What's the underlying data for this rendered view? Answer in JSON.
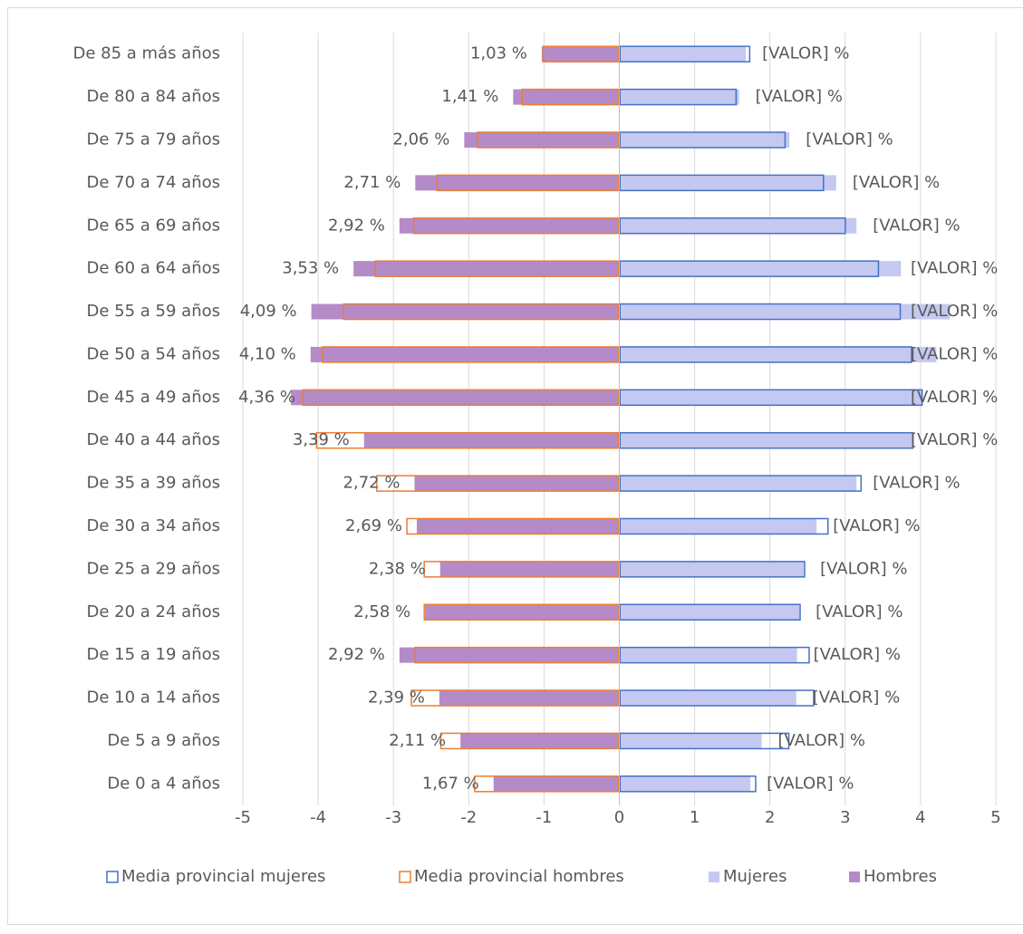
{
  "chart_data": {
    "type": "bar",
    "orientation": "horizontal",
    "categories": [
      "De 85 a más años",
      "De 80 a 84 años",
      "De 75 a 79 años",
      "De 70 a 74 años",
      "De 65 a 69 años",
      "De 60 a 64 años",
      "De 55 a 59 años",
      "De 50 a 54 años",
      "De 45 a 49 años",
      "De 40 a 44 años",
      "De 35 a 39 años",
      "De 30 a 34 años",
      "De 25 a 29 años",
      "De 20 a 24 años",
      "De 15 a 19 años",
      "De 10 a 14 años",
      "De 5 a 9 años",
      "De 0 a 4 años"
    ],
    "series": [
      {
        "name": "Media provincial mujeres",
        "color": "#4472c4",
        "filled": false,
        "values": [
          1.74,
          1.56,
          2.21,
          2.72,
          3.01,
          3.45,
          3.74,
          3.89,
          4.03,
          3.91,
          3.22,
          2.78,
          2.47,
          2.41,
          2.53,
          2.59,
          2.26,
          1.82
        ]
      },
      {
        "name": "Media provincial hombres",
        "color": "#ed7d31",
        "filled": false,
        "values": [
          -1.02,
          -1.3,
          -1.89,
          -2.43,
          -2.74,
          -3.25,
          -3.67,
          -3.95,
          -4.21,
          -4.03,
          -3.23,
          -2.83,
          -2.6,
          -2.6,
          -2.72,
          -2.77,
          -2.38,
          -1.93
        ]
      },
      {
        "name": "Mujeres",
        "color": "#c5c8f0",
        "filled": true,
        "values": [
          1.68,
          1.59,
          2.26,
          2.88,
          3.15,
          3.74,
          4.39,
          4.21,
          4.03,
          3.91,
          3.15,
          2.62,
          2.45,
          2.39,
          2.36,
          2.35,
          1.89,
          1.74
        ],
        "value_labels": [
          "[VALOR] %",
          "[VALOR] %",
          "[VALOR] %",
          "[VALOR] %",
          "[VALOR] %",
          "[VALOR] %",
          "[VALOR] %",
          "[VALOR] %",
          "[VALOR] %",
          "[VALOR] %",
          "[VALOR] %",
          "[VALOR] %",
          "[VALOR] %",
          "[VALOR] %",
          "[VALOR] %",
          "[VALOR] %",
          "[VALOR] %",
          "[VALOR] %"
        ]
      },
      {
        "name": "Hombres",
        "color": "#b48bc7",
        "filled": true,
        "values": [
          -1.03,
          -1.41,
          -2.06,
          -2.71,
          -2.92,
          -3.53,
          -4.09,
          -4.1,
          -4.36,
          -3.39,
          -2.72,
          -2.69,
          -2.38,
          -2.58,
          -2.92,
          -2.39,
          -2.11,
          -1.67
        ],
        "value_labels": [
          "1,03 %",
          "1,41 %",
          "2,06 %",
          "2,71 %",
          "2,92 %",
          "3,53 %",
          "4,09 %",
          "4,10 %",
          "4,36 %",
          "3,39 %",
          "2,72 %",
          "2,69 %",
          "2,38 %",
          "2,58 %",
          "2,92 %",
          "2,39 %",
          "2,11 %",
          "1,67 %"
        ]
      }
    ],
    "xlim": [
      -5,
      5
    ],
    "xticks": [
      -5,
      -4,
      -3,
      -2,
      -1,
      0,
      1,
      2,
      3,
      4,
      5
    ],
    "grid": true,
    "legend": "bottom"
  }
}
